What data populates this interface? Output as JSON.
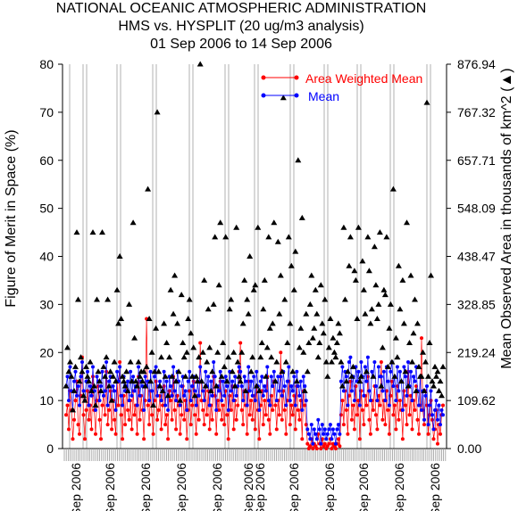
{
  "chart_data": {
    "type": "scatter",
    "title": [
      "NATIONAL OCEANIC ATMOSPHERIC ADMINISTRATION",
      "HMS vs. HYSPLIT (20 ug/m3 analysis)",
      "01 Sep 2006 to 14 Sep 2006"
    ],
    "ylabel_left": "Figure of Merit in Space (%)",
    "ylabel_right": "Mean Observed Area in thousands of km^2 (▲)",
    "ylim_left": [
      0,
      80
    ],
    "yticks_left": [
      "0",
      "10",
      "20",
      "30",
      "40",
      "50",
      "60",
      "70",
      "80"
    ],
    "ylim_right": [
      0,
      876.94
    ],
    "yticks_right": [
      "0.00",
      "109.62",
      "219.24",
      "328.85",
      "438.47",
      "548.09",
      "657.71",
      "767.32",
      "876.94"
    ],
    "xtick_label": "Sep 2006",
    "xtick_count": 12,
    "legend_position": "top-right",
    "series": [
      {
        "name": "Area Weighted Mean",
        "color": "#ff0000",
        "marker": "circle",
        "values": [
          7,
          9,
          4,
          12,
          8,
          2,
          6,
          10,
          14,
          5,
          3,
          11,
          19,
          7,
          2,
          8,
          12,
          6,
          9,
          4,
          15,
          8,
          3,
          10,
          13,
          6,
          2,
          9,
          11,
          7,
          16,
          5,
          8,
          12,
          4,
          10,
          6,
          3,
          14,
          9,
          18,
          7,
          2,
          11,
          5,
          13,
          8,
          6,
          10,
          4,
          12,
          7,
          9,
          3,
          15,
          6,
          11,
          8,
          2,
          10,
          27,
          9,
          5,
          12,
          7,
          3,
          10,
          14,
          6,
          8,
          11,
          4,
          9,
          13,
          5,
          7,
          2,
          12,
          10,
          6,
          15,
          8,
          4,
          11,
          9,
          3,
          7,
          13,
          6,
          10,
          2,
          8,
          12,
          5,
          9,
          14,
          7,
          3,
          11,
          6,
          22,
          10,
          8,
          5,
          13,
          7,
          12,
          4,
          9,
          6,
          15,
          11,
          3,
          10,
          8,
          14,
          6,
          9,
          5,
          12,
          7,
          2,
          11,
          8,
          13,
          4,
          10,
          6,
          9,
          16,
          22,
          8,
          5,
          12,
          9,
          3,
          14,
          7,
          10,
          6,
          11,
          4,
          13,
          8,
          2,
          9,
          12,
          5,
          10,
          7,
          15,
          6,
          3,
          11,
          8,
          14,
          9,
          4,
          10,
          7,
          20,
          6,
          12,
          8,
          3,
          10,
          14,
          5,
          9,
          7,
          11,
          4,
          13,
          8,
          6,
          10,
          2,
          12,
          9,
          5,
          1,
          0,
          0.5,
          2,
          0,
          1,
          0.5,
          0,
          3,
          1,
          0,
          2,
          0.5,
          1,
          0,
          0.5,
          1,
          2,
          0,
          1,
          0.5,
          0,
          1,
          2,
          0.5,
          7,
          10,
          5,
          12,
          8,
          3,
          11,
          14,
          6,
          9,
          4,
          13,
          7,
          10,
          2,
          12,
          8,
          5,
          11,
          9,
          15,
          6,
          3,
          10,
          8,
          13,
          7,
          4,
          11,
          9,
          18,
          6,
          10,
          5,
          12,
          8,
          3,
          11,
          14,
          7,
          9,
          4,
          13,
          6,
          10,
          8,
          2,
          12,
          9,
          5,
          16,
          7,
          11,
          4,
          10,
          8,
          13,
          6,
          3,
          9,
          23,
          8,
          5,
          12,
          9,
          3,
          7,
          10,
          6,
          2,
          4,
          8,
          1,
          5,
          3,
          7,
          9
        ]
      },
      {
        "name": "Mean",
        "color": "#0000ff",
        "marker": "circle",
        "values": [
          13,
          15,
          10,
          17,
          12,
          8,
          14,
          16,
          11,
          13,
          9,
          15,
          18,
          12,
          10,
          14,
          16,
          9,
          13,
          11,
          17,
          12,
          8,
          15,
          14,
          10,
          13,
          16,
          11,
          12,
          18,
          9,
          14,
          15,
          10,
          13,
          12,
          8,
          16,
          14,
          17,
          11,
          9,
          15,
          12,
          13,
          14,
          10,
          16,
          11,
          15,
          12,
          13,
          9,
          17,
          11,
          14,
          13,
          8,
          15,
          13,
          14,
          10,
          16,
          12,
          9,
          15,
          17,
          11,
          13,
          14,
          10,
          12,
          16,
          9,
          14,
          8,
          15,
          13,
          11,
          17,
          12,
          10,
          16,
          14,
          9,
          13,
          15,
          11,
          12,
          8,
          14,
          16,
          10,
          13,
          15,
          12,
          9,
          14,
          11,
          17,
          14,
          12,
          10,
          16,
          13,
          15,
          9,
          14,
          11,
          18,
          15,
          8,
          13,
          12,
          16,
          10,
          14,
          11,
          15,
          13,
          8,
          16,
          12,
          14,
          10,
          15,
          11,
          13,
          17,
          16,
          13,
          10,
          15,
          14,
          9,
          17,
          12,
          14,
          11,
          15,
          10,
          16,
          13,
          8,
          14,
          15,
          11,
          13,
          12,
          17,
          10,
          9,
          15,
          13,
          16,
          14,
          10,
          15,
          12,
          15,
          11,
          16,
          13,
          9,
          14,
          17,
          10,
          13,
          12,
          15,
          9,
          16,
          13,
          11,
          14,
          8,
          15,
          13,
          10,
          4,
          3,
          2,
          5,
          1,
          4,
          3,
          2,
          6,
          4,
          1,
          5,
          3,
          4,
          2,
          3,
          4,
          5,
          2,
          4,
          3,
          1,
          4,
          5,
          3,
          14,
          17,
          12,
          16,
          15,
          9,
          18,
          19,
          12,
          15,
          10,
          17,
          14,
          16,
          9,
          18,
          15,
          11,
          17,
          14,
          19,
          12,
          10,
          16,
          15,
          18,
          13,
          10,
          17,
          15,
          15,
          12,
          16,
          10,
          17,
          14,
          9,
          16,
          18,
          13,
          15,
          10,
          17,
          12,
          16,
          14,
          8,
          17,
          15,
          11,
          18,
          13,
          16,
          10,
          15,
          14,
          17,
          12,
          9,
          15,
          8,
          12,
          6,
          11,
          13,
          5,
          9,
          12,
          7,
          4,
          8,
          10,
          6,
          9,
          5,
          8,
          7
        ]
      },
      {
        "name": "Mean Observed Area",
        "color": "#000000",
        "marker": "triangle",
        "axis": "right",
        "values_pct": [
          13,
          21,
          16,
          18,
          15,
          8,
          12,
          17,
          45,
          31,
          14,
          19,
          16,
          11,
          10,
          17,
          15,
          14,
          18,
          12,
          45,
          13,
          9,
          31,
          16,
          14,
          12,
          45,
          17,
          15,
          19,
          31,
          13,
          16,
          10,
          15,
          18,
          14,
          33,
          26,
          40,
          27,
          15,
          14,
          13,
          16,
          12,
          30,
          18,
          14,
          47,
          23,
          14,
          13,
          18,
          15,
          16,
          14,
          16,
          13,
          17,
          54,
          27,
          14,
          20,
          9,
          16,
          25,
          70,
          16,
          13,
          19,
          12,
          26,
          15,
          22,
          11,
          19,
          33,
          15,
          28,
          36,
          14,
          26,
          16,
          10,
          32,
          22,
          19,
          15,
          20,
          27,
          31,
          24,
          15,
          21,
          11,
          15,
          14,
          19,
          80,
          14,
          20,
          35,
          13,
          18,
          29,
          21,
          12,
          16,
          30,
          44,
          13,
          20,
          34,
          47,
          15,
          22,
          17,
          44,
          14,
          19,
          29,
          31,
          16,
          20,
          13,
          46,
          18,
          15,
          14,
          20,
          26,
          35,
          12,
          31,
          28,
          40,
          16,
          19,
          33,
          34,
          13,
          46,
          12,
          19,
          22,
          29,
          35,
          15,
          21,
          44,
          25,
          19,
          26,
          47,
          14,
          18,
          43,
          28,
          36,
          16,
          73,
          31,
          18,
          22,
          44,
          26,
          38,
          16,
          33,
          41,
          14,
          60,
          21,
          25,
          48,
          20,
          12,
          28,
          16,
          22,
          30,
          36,
          23,
          25,
          33,
          28,
          19,
          22,
          34,
          26,
          24,
          31,
          18,
          15,
          21,
          27,
          18,
          23,
          20,
          19,
          22,
          26,
          24,
          18,
          13,
          46,
          31,
          14,
          16,
          38,
          44,
          15,
          17,
          37,
          35,
          27,
          46,
          14,
          15,
          39,
          33,
          28,
          16,
          44,
          37,
          26,
          29,
          15,
          42,
          34,
          27,
          30,
          45,
          13,
          21,
          33,
          32,
          44,
          17,
          25,
          30,
          18,
          54,
          15,
          23,
          19,
          38,
          29,
          14,
          35,
          26,
          16,
          47,
          13,
          22,
          36,
          18,
          24,
          31,
          12,
          26,
          17,
          15,
          15,
          20,
          12,
          18,
          72,
          15,
          22,
          36,
          14,
          13,
          17,
          15,
          16,
          12,
          14,
          11,
          17
        ]
      }
    ]
  }
}
